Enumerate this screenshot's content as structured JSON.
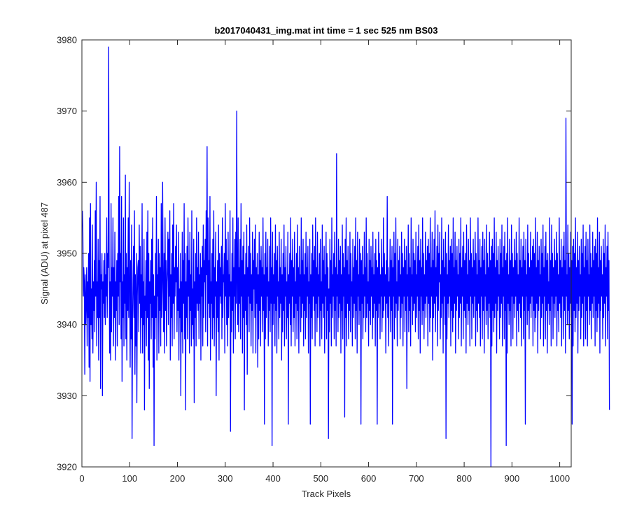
{
  "chart_data": {
    "type": "line",
    "title": "b2017040431_img.mat int time = 1 sec  525 nm BS03",
    "xlabel": "Track Pixels",
    "ylabel": "Signal (ADU) at pixel 487",
    "xlim": [
      0,
      1024
    ],
    "ylim": [
      3920,
      3980
    ],
    "xticks": [
      "0",
      "100",
      "200",
      "300",
      "400",
      "500",
      "600",
      "700",
      "800",
      "900",
      "1000"
    ],
    "yticks": [
      "3920",
      "3930",
      "3940",
      "3950",
      "3960",
      "3970",
      "3980"
    ],
    "grid": false,
    "legend": "none",
    "series": [
      {
        "color": "#0000ff",
        "x_start": 1,
        "x_step": 1,
        "values": [
          3956,
          3953,
          3944,
          3948,
          3946,
          3933,
          3947,
          3940,
          3943,
          3948,
          3937,
          3946,
          3941,
          3950,
          3934,
          3955,
          3932,
          3957,
          3940,
          3945,
          3938,
          3954,
          3936,
          3946,
          3942,
          3949,
          3939,
          3956,
          3944,
          3960,
          3937,
          3946,
          3941,
          3952,
          3935,
          3949,
          3941,
          3958,
          3931,
          3947,
          3945,
          3950,
          3930,
          3946,
          3943,
          3949,
          3941,
          3950,
          3940,
          3947,
          3944,
          3955,
          3941,
          3950,
          3948,
          3979,
          3950,
          3936,
          3946,
          3935,
          3957,
          3939,
          3948,
          3944,
          3955,
          3937,
          3948,
          3941,
          3953,
          3935,
          3946,
          3942,
          3949,
          3937,
          3950,
          3944,
          3958,
          3940,
          3965,
          3946,
          3950,
          3938,
          3958,
          3932,
          3946,
          3941,
          3955,
          3937,
          3947,
          3943,
          3961,
          3938,
          3950,
          3935,
          3948,
          3942,
          3955,
          3941,
          3960,
          3946,
          3934,
          3949,
          3938,
          3954,
          3924,
          3940,
          3946,
          3951,
          3941,
          3956,
          3933,
          3947,
          3937,
          3950,
          3929,
          3944,
          3948,
          3949,
          3939,
          3954,
          3943,
          3951,
          3936,
          3947,
          3941,
          3957,
          3936,
          3946,
          3940,
          3952,
          3928,
          3944,
          3942,
          3949,
          3937,
          3953,
          3941,
          3956,
          3935,
          3950,
          3931,
          3946,
          3943,
          3949,
          3938,
          3952,
          3941,
          3955,
          3934,
          3947,
          3923,
          3944,
          3938,
          3950,
          3941,
          3958,
          3935,
          3947,
          3944,
          3952,
          3936,
          3950,
          3942,
          3948,
          3937,
          3957,
          3941,
          3946,
          3960,
          3945,
          3939,
          3950,
          3936,
          3955,
          3942,
          3949,
          3937,
          3946,
          3948,
          3953,
          3940,
          3952,
          3944,
          3956,
          3935,
          3947,
          3941,
          3950,
          3937,
          3954,
          3943,
          3957,
          3938,
          3948,
          3944,
          3951,
          3946,
          3954,
          3939,
          3948,
          3942,
          3953,
          3935,
          3945,
          3941,
          3950,
          3930,
          3946,
          3939,
          3953,
          3936,
          3949,
          3943,
          3957,
          3938,
          3950,
          3928,
          3946,
          3941,
          3951,
          3938,
          3955,
          3944,
          3949,
          3936,
          3953,
          3942,
          3947,
          3937,
          3956,
          3940,
          3945,
          3938,
          3952,
          3929,
          3946,
          3941,
          3950,
          3937,
          3955,
          3943,
          3948,
          3942,
          3953,
          3938,
          3947,
          3943,
          3950,
          3935,
          3948,
          3944,
          3951,
          3937,
          3954,
          3941,
          3949,
          3946,
          3952,
          3939,
          3956,
          3947,
          3965,
          3937,
          3955,
          3943,
          3949,
          3941,
          3958,
          3935,
          3946,
          3943,
          3950,
          3938,
          3952,
          3941,
          3956,
          3937,
          3948,
          3944,
          3953,
          3930,
          3946,
          3941,
          3949,
          3939,
          3954,
          3935,
          3950,
          3944,
          3948,
          3943,
          3951,
          3938,
          3955,
          3941,
          3947,
          3946,
          3950,
          3936,
          3957,
          3944,
          3952,
          3940,
          3949,
          3937,
          3953,
          3941,
          3947,
          3944,
          3956,
          3925,
          3946,
          3939,
          3950,
          3942,
          3955,
          3936,
          3948,
          3944,
          3952,
          3938,
          3953,
          3943,
          3970,
          3946,
          3940,
          3955,
          3939,
          3948,
          3943,
          3952,
          3938,
          3957,
          3944,
          3949,
          3936,
          3951,
          3941,
          3953,
          3928,
          3947,
          3942,
          3950,
          3940,
          3954,
          3933,
          3948,
          3944,
          3951,
          3939,
          3955,
          3943,
          3950,
          3937,
          3947,
          3942,
          3953,
          3936,
          3949,
          3945,
          3952,
          3941,
          3954,
          3936,
          3948,
          3943,
          3950,
          3934,
          3947,
          3938,
          3953,
          3942,
          3949,
          3937,
          3951,
          3944,
          3948,
          3939,
          3955,
          3942,
          3947,
          3926,
          3950,
          3938,
          3953,
          3941,
          3948,
          3944,
          3952,
          3937,
          3946,
          3942,
          3951,
          3939,
          3955,
          3943,
          3948,
          3923,
          3953,
          3940,
          3947,
          3943,
          3950,
          3937,
          3954,
          3942,
          3949,
          3936,
          3951,
          3944,
          3946,
          3938,
          3953,
          3941,
          3948,
          3943,
          3952,
          3935,
          3947,
          3939,
          3950,
          3942,
          3954,
          3937,
          3948,
          3944,
          3951,
          3938,
          3946,
          3941,
          3953,
          3926,
          3947,
          3943,
          3950,
          3940,
          3955,
          3937,
          3949,
          3944,
          3952,
          3939,
          3948,
          3941,
          3953,
          3937,
          3946,
          3943,
          3950,
          3938,
          3954,
          3942,
          3948,
          3936,
          3951,
          3944,
          3947,
          3939,
          3955,
          3941,
          3949,
          3943,
          3952,
          3937,
          3947,
          3942,
          3950,
          3938,
          3953,
          3941,
          3948,
          3944,
          3951,
          3936,
          3946,
          3943,
          3952,
          3926,
          3947,
          3941,
          3950,
          3938,
          3954,
          3944,
          3949,
          3942,
          3951,
          3937,
          3955,
          3943,
          3948,
          3939,
          3953,
          3941,
          3947,
          3944,
          3950,
          3937,
          3952,
          3942,
          3946,
          3938,
          3954,
          3943,
          3949,
          3941,
          3951,
          3936,
          3947,
          3944,
          3953,
          3938,
          3950,
          3942,
          3948,
          3924,
          3945,
          3939,
          3952,
          3943,
          3949,
          3937,
          3955,
          3941,
          3947,
          3944,
          3950,
          3938,
          3953,
          3942,
          3948,
          3937,
          3964,
          3944,
          3947,
          3939,
          3952,
          3941,
          3949,
          3943,
          3951,
          3936,
          3947,
          3942,
          3954,
          3938,
          3950,
          3944,
          3948,
          3927,
          3952,
          3941,
          3955,
          3937,
          3949,
          3943,
          3951,
          3938,
          3947,
          3942,
          3953,
          3939,
          3950,
          3944,
          3946,
          3937,
          3952,
          3941,
          3948,
          3943,
          3951,
          3938,
          3955,
          3942,
          3949,
          3936,
          3953,
          3944,
          3947,
          3940,
          3952,
          3942,
          3950,
          3926,
          3949,
          3943,
          3951,
          3938,
          3947,
          3941,
          3953,
          3944,
          3948,
          3939,
          3955,
          3941,
          3950,
          3943,
          3946,
          3937,
          3952,
          3942,
          3949,
          3940,
          3951,
          3944,
          3948,
          3938,
          3953,
          3941,
          3947,
          3943,
          3950,
          3937,
          3952,
          3942,
          3949,
          3926,
          3948,
          3941,
          3953,
          3943,
          3950,
          3938,
          3947,
          3944,
          3952,
          3939,
          3948,
          3941,
          3955,
          3942,
          3950,
          3944,
          3947,
          3936,
          3949,
          3943,
          3958,
          3941,
          3948,
          3937,
          3946,
          3944,
          3952,
          3939,
          3949,
          3942,
          3951,
          3926,
          3948,
          3944,
          3953,
          3938,
          3950,
          3941,
          3955,
          3943,
          3946,
          3937,
          3952,
          3942,
          3949,
          3944,
          3951,
          3938,
          3947,
          3941,
          3953,
          3943,
          3950,
          3937,
          3948,
          3944,
          3952,
          3939,
          3949,
          3942,
          3951,
          3931,
          3947,
          3944,
          3954,
          3939,
          3950,
          3942,
          3948,
          3937,
          3955,
          3944,
          3947,
          3940,
          3952,
          3942,
          3950,
          3943,
          3949,
          3939,
          3953,
          3941,
          3947,
          3944,
          3951,
          3938,
          3954,
          3942,
          3949,
          3936,
          3952,
          3944,
          3948,
          3940,
          3955,
          3942,
          3950,
          3938,
          3947,
          3943,
          3953,
          3941,
          3949,
          3944,
          3951,
          3937,
          3952,
          3943,
          3950,
          3939,
          3955,
          3941,
          3948,
          3944,
          3953,
          3935,
          3949,
          3941,
          3952,
          3943,
          3956,
          3939,
          3948,
          3944,
          3951,
          3937,
          3954,
          3942,
          3950,
          3946,
          3953,
          3938,
          3947,
          3941,
          3955,
          3943,
          3949,
          3936,
          3952,
          3944,
          3948,
          3940,
          3953,
          3924,
          3950,
          3938,
          3947,
          3943,
          3954,
          3941,
          3949,
          3944,
          3951,
          3937,
          3952,
          3942,
          3950,
          3939,
          3955,
          3941,
          3948,
          3943,
          3953,
          3936,
          3949,
          3942,
          3951,
          3944,
          3947,
          3938,
          3952,
          3941,
          3950,
          3943,
          3955,
          3937,
          3948,
          3944,
          3951,
          3938,
          3953,
          3942,
          3949,
          3941,
          3950,
          3936,
          3954,
          3943,
          3947,
          3940,
          3952,
          3942,
          3949,
          3937,
          3955,
          3944,
          3950,
          3938,
          3948,
          3943,
          3952,
          3941,
          3949,
          3944,
          3953,
          3937,
          3950,
          3942,
          3947,
          3939,
          3955,
          3943,
          3949,
          3941,
          3952,
          3937,
          3948,
          3944,
          3951,
          3938,
          3953,
          3942,
          3949,
          3936,
          3952,
          3944,
          3947,
          3940,
          3954,
          3942,
          3950,
          3938,
          3948,
          3943,
          3953,
          3941,
          3949,
          3920,
          3951,
          3937,
          3952,
          3942,
          3950,
          3939,
          3955,
          3941,
          3948,
          3943,
          3953,
          3936,
          3949,
          3942,
          3951,
          3944,
          3947,
          3938,
          3952,
          3941,
          3950,
          3943,
          3954,
          3937,
          3948,
          3944,
          3951,
          3938,
          3953,
          3942,
          3949,
          3923,
          3950,
          3936,
          3955,
          3943,
          3947,
          3940,
          3952,
          3942,
          3949,
          3937,
          3954,
          3944,
          3950,
          3938,
          3948,
          3943,
          3952,
          3941,
          3949,
          3944,
          3953,
          3937,
          3950,
          3942,
          3947,
          3939,
          3955,
          3943,
          3949,
          3941,
          3952,
          3937,
          3948,
          3944,
          3951,
          3938,
          3953,
          3942,
          3949,
          3926,
          3952,
          3944,
          3947,
          3940,
          3954,
          3942,
          3950,
          3938,
          3948,
          3943,
          3953,
          3941,
          3949,
          3944,
          3951,
          3937,
          3952,
          3942,
          3950,
          3939,
          3955,
          3941,
          3948,
          3943,
          3953,
          3936,
          3949,
          3942,
          3951,
          3944,
          3947,
          3938,
          3952,
          3941,
          3950,
          3943,
          3954,
          3937,
          3948,
          3944,
          3951,
          3938,
          3953,
          3942,
          3949,
          3936,
          3950,
          3943,
          3946,
          3940,
          3955,
          3942,
          3949,
          3937,
          3954,
          3944,
          3950,
          3938,
          3948,
          3943,
          3952,
          3941,
          3949,
          3944,
          3953,
          3937,
          3950,
          3942,
          3947,
          3939,
          3955,
          3943,
          3949,
          3941,
          3952,
          3937,
          3948,
          3944,
          3951,
          3938,
          3953,
          3942,
          3949,
          3936,
          3969,
          3944,
          3947,
          3940,
          3954,
          3942,
          3950,
          3938,
          3948,
          3943,
          3953,
          3941,
          3949,
          3926,
          3951,
          3937,
          3952,
          3942,
          3950,
          3939,
          3955,
          3941,
          3948,
          3943,
          3953,
          3936,
          3949,
          3942,
          3951,
          3944,
          3947,
          3938,
          3952,
          3941,
          3950,
          3943,
          3954,
          3937,
          3948,
          3944,
          3951,
          3938,
          3953,
          3942,
          3949,
          3937,
          3952,
          3944,
          3947,
          3940,
          3954,
          3942,
          3950,
          3938,
          3948,
          3943,
          3953,
          3941,
          3949,
          3944,
          3951,
          3937,
          3952,
          3942,
          3950,
          3939,
          3955,
          3941,
          3948,
          3943,
          3953,
          3936,
          3949,
          3942,
          3951,
          3944,
          3947,
          3938,
          3952,
          3941,
          3950,
          3943,
          3954,
          3937,
          3948,
          3944,
          3951,
          3938,
          3953,
          3942,
          3949,
          3928
        ]
      }
    ]
  }
}
